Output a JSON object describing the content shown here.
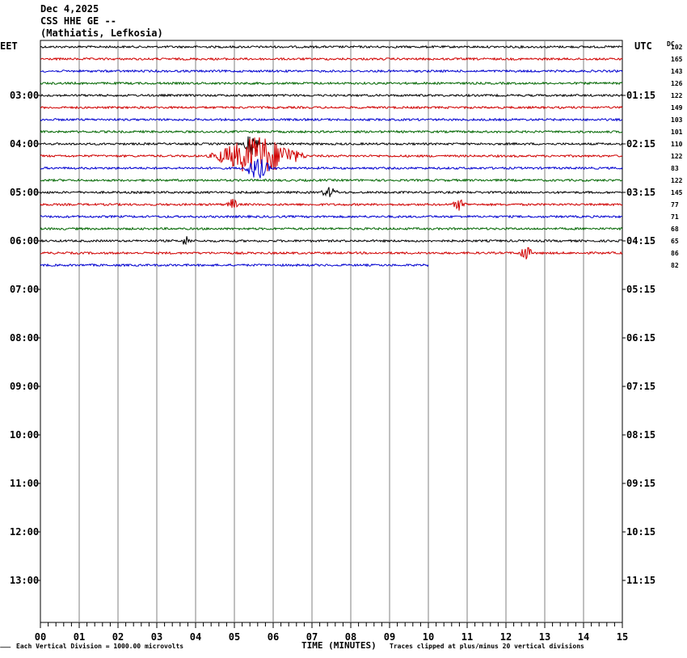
{
  "header": {
    "date": "Dec 4,2025",
    "station": "CSS HHE GE --",
    "location": "(Mathiatis, Lefkosia)"
  },
  "axes": {
    "left_tz": "EET",
    "right_tz": "UTC",
    "dc_label": "DC",
    "xlabel": "TIME (MINUTES)"
  },
  "footer": {
    "scale_note": "Each Vertical Division = 1000.00 microvolts",
    "clip_note": "Traces clipped at plus/minus 20 vertical divisions"
  },
  "colors": {
    "trace_cycle": [
      "#000000",
      "#d00000",
      "#0000d0",
      "#006600"
    ],
    "grid": "#808080"
  },
  "chart_data": {
    "type": "line",
    "title": "CSS HHE GE --",
    "subtitle": "(Mathiatis, Lefkosia)",
    "xlabel": "TIME (MINUTES)",
    "xlim": [
      0,
      15
    ],
    "x_ticks": [
      "00",
      "01",
      "02",
      "03",
      "04",
      "05",
      "06",
      "07",
      "08",
      "09",
      "10",
      "11",
      "12",
      "13",
      "14",
      "15"
    ],
    "left_time_labels": [
      "03:00",
      "04:00",
      "05:00",
      "06:00",
      "07:00",
      "08:00",
      "09:00",
      "10:00",
      "11:00",
      "12:00",
      "13:00"
    ],
    "right_time_labels": [
      "01:15",
      "02:15",
      "03:15",
      "04:15",
      "05:15",
      "06:15",
      "07:15",
      "08:15",
      "09:15",
      "10:15",
      "11:15"
    ],
    "row_minutes": 15,
    "dc_offsets": [
      "102",
      "165",
      "143",
      "126",
      "122",
      "149",
      "103",
      "101",
      "110",
      "122",
      "83",
      "122",
      "145",
      "77",
      "71",
      "68",
      "65",
      "86",
      "82"
    ],
    "trace_count": 19,
    "last_trace_end_minute": 10,
    "events": [
      {
        "row": 8,
        "start_min": 5.2,
        "end_min": 5.7,
        "amp": 1.4
      },
      {
        "row": 9,
        "start_min": 4.3,
        "end_min": 6.9,
        "amp": 2.6
      },
      {
        "row": 10,
        "start_min": 5.2,
        "end_min": 6.0,
        "amp": 1.4
      },
      {
        "row": 12,
        "start_min": 7.2,
        "end_min": 7.7,
        "amp": 0.6
      },
      {
        "row": 13,
        "start_min": 4.8,
        "end_min": 5.1,
        "amp": 0.8
      },
      {
        "row": 13,
        "start_min": 10.6,
        "end_min": 11.0,
        "amp": 0.7
      },
      {
        "row": 17,
        "start_min": 12.3,
        "end_min": 12.7,
        "amp": 1.0
      },
      {
        "row": 16,
        "start_min": 3.6,
        "end_min": 3.9,
        "amp": 0.6
      }
    ]
  }
}
